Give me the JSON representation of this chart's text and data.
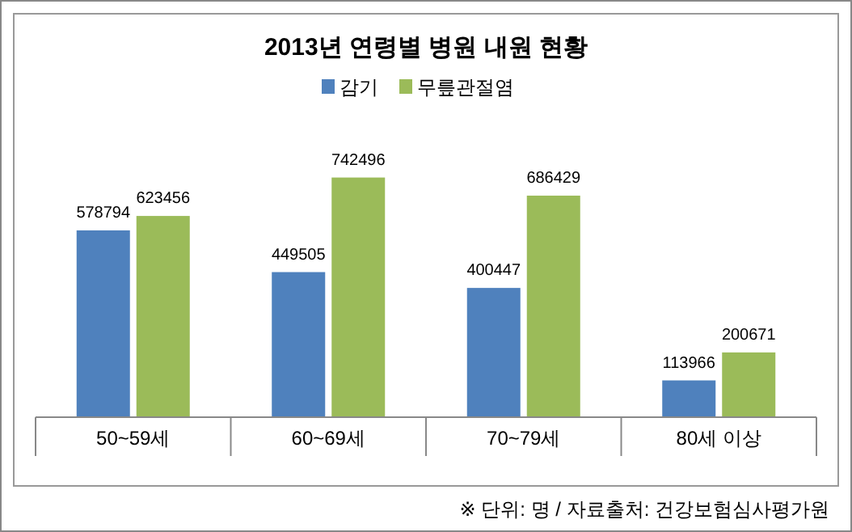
{
  "chart_data": {
    "type": "bar",
    "title": "2013년 연령별 병원 내원 현황",
    "categories": [
      "50~59세",
      "60~69세",
      "70~79세",
      "80세 이상"
    ],
    "series": [
      {
        "name": "감기",
        "color": "#4f81bd",
        "values": [
          578794,
          449505,
          400447,
          113966
        ]
      },
      {
        "name": "무릎관절염",
        "color": "#9bbb59",
        "values": [
          623456,
          742496,
          686429,
          200671
        ]
      }
    ],
    "data_labels": true,
    "legend": "top",
    "grid": false,
    "annotations": [
      "※ 단위: 명 / 자료출처: 건강보험심사평가원"
    ]
  }
}
